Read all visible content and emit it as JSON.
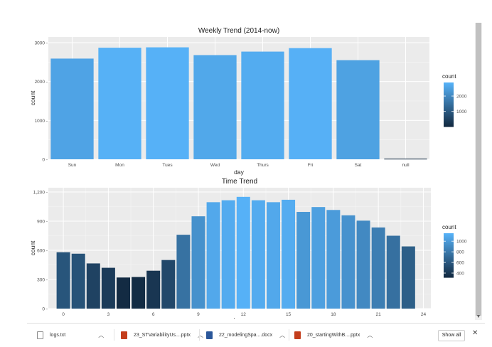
{
  "chart_data": [
    {
      "type": "bar",
      "title": "Weekly Trend (2014-now)",
      "xlabel": "day",
      "ylabel": "count",
      "categories": [
        "Sun",
        "Mon",
        "Tues",
        "Wed",
        "Thurs",
        "Fri",
        "Sat",
        "null"
      ],
      "values": [
        2590,
        2870,
        2880,
        2680,
        2770,
        2860,
        2550,
        15
      ],
      "ylim": [
        0,
        3000
      ],
      "yticks": [
        0,
        1000,
        2000,
        3000
      ],
      "ytick_labels": [
        "0 -",
        "1000 -",
        "2000 -",
        "3000 -"
      ],
      "grid": true,
      "legend": {
        "title": "count",
        "position": "right",
        "ticks": [
          1000,
          2000
        ],
        "range": [
          15,
          2880
        ]
      }
    },
    {
      "type": "bar",
      "title": "Time Trend",
      "xlabel": "hour",
      "ylabel": "count",
      "x": [
        0,
        1,
        2,
        3,
        4,
        5,
        6,
        7,
        8,
        9,
        10,
        11,
        12,
        13,
        14,
        15,
        16,
        17,
        18,
        19,
        20,
        21,
        22,
        23
      ],
      "values": [
        580,
        565,
        465,
        420,
        320,
        325,
        390,
        500,
        760,
        950,
        1095,
        1115,
        1150,
        1115,
        1095,
        1120,
        995,
        1045,
        1015,
        960,
        905,
        835,
        750,
        640
      ],
      "xlim": [
        -1,
        24.5
      ],
      "xticks": [
        0,
        3,
        6,
        9,
        12,
        15,
        18,
        21,
        24
      ],
      "ylim": [
        0,
        1200
      ],
      "yticks": [
        0,
        300,
        600,
        900,
        1200
      ],
      "ytick_labels": [
        "0 -",
        "300 -",
        "600 -",
        "900 -",
        "1,200 -"
      ],
      "grid": true,
      "legend": {
        "title": "count",
        "position": "right",
        "ticks": [
          400,
          600,
          800,
          1000
        ],
        "range": [
          320,
          1150
        ]
      }
    }
  ],
  "colors": {
    "low": "#132b43",
    "high": "#56b1f7",
    "panel": "#ebebeb",
    "grid": "#ffffff",
    "text": "#4d4d4d"
  },
  "downloads": {
    "items": [
      {
        "name": "logs.txt",
        "icon": "txt-file-icon"
      },
      {
        "name": "23_STVariabilityUs....pptx",
        "icon": "ppt-file-icon"
      },
      {
        "name": "22_modelingSpa....docx",
        "icon": "doc-file-icon"
      },
      {
        "name": "20_startingWithB....pptx",
        "icon": "ppt-file-icon"
      }
    ],
    "show_all": "Show all",
    "close": "✕"
  }
}
